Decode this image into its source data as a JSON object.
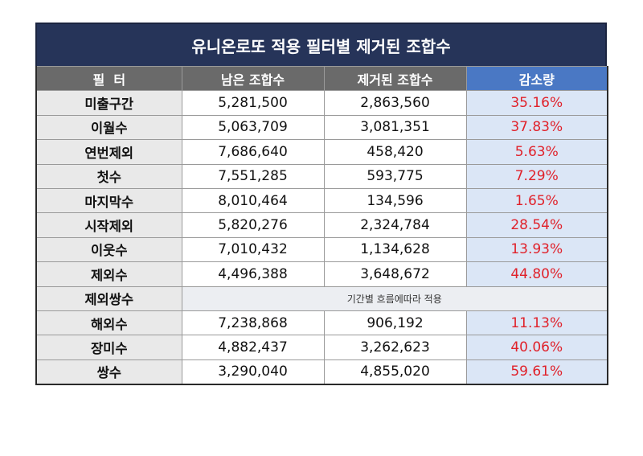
{
  "title": "유니온로또 적용 필터별 제거된 조합수",
  "headers": {
    "filter": "필  터",
    "remaining": "남은 조합수",
    "removed": "제거된 조합수",
    "reduction": "감소량"
  },
  "rows": [
    {
      "filter": "미출구간",
      "remaining": "5,281,500",
      "removed": "2,863,560",
      "reduction": "35.16%"
    },
    {
      "filter": "이월수",
      "remaining": "5,063,709",
      "removed": "3,081,351",
      "reduction": "37.83%"
    },
    {
      "filter": "연번제외",
      "remaining": "7,686,640",
      "removed": "458,420",
      "reduction": "5.63%"
    },
    {
      "filter": "첫수",
      "remaining": "7,551,285",
      "removed": "593,775",
      "reduction": "7.29%"
    },
    {
      "filter": "마지막수",
      "remaining": "8,010,464",
      "removed": "134,596",
      "reduction": "1.65%"
    },
    {
      "filter": "시작제외",
      "remaining": "5,820,276",
      "removed": "2,324,784",
      "reduction": "28.54%"
    },
    {
      "filter": "이웃수",
      "remaining": "7,010,432",
      "removed": "1,134,628",
      "reduction": "13.93%"
    },
    {
      "filter": "제외수",
      "remaining": "4,496,388",
      "removed": "3,648,672",
      "reduction": "44.80%"
    },
    {
      "filter": "제외쌍수",
      "note": "기간별 흐름에따라 적용"
    },
    {
      "filter": "해외수",
      "remaining": "7,238,868",
      "removed": "906,192",
      "reduction": "11.13%"
    },
    {
      "filter": "장미수",
      "remaining": "4,882,437",
      "removed": "3,262,623",
      "reduction": "40.06%"
    },
    {
      "filter": "쌍수",
      "remaining": "3,290,040",
      "removed": "4,855,020",
      "reduction": "59.61%"
    }
  ],
  "colors": {
    "title_bg": "#263459",
    "header_bg": "#6a6a6a",
    "rate_header_bg": "#4a78c4",
    "rate_bg": "#dbe6f6",
    "rate_text": "#e0212a",
    "filter_bg": "#e9e9e9"
  }
}
